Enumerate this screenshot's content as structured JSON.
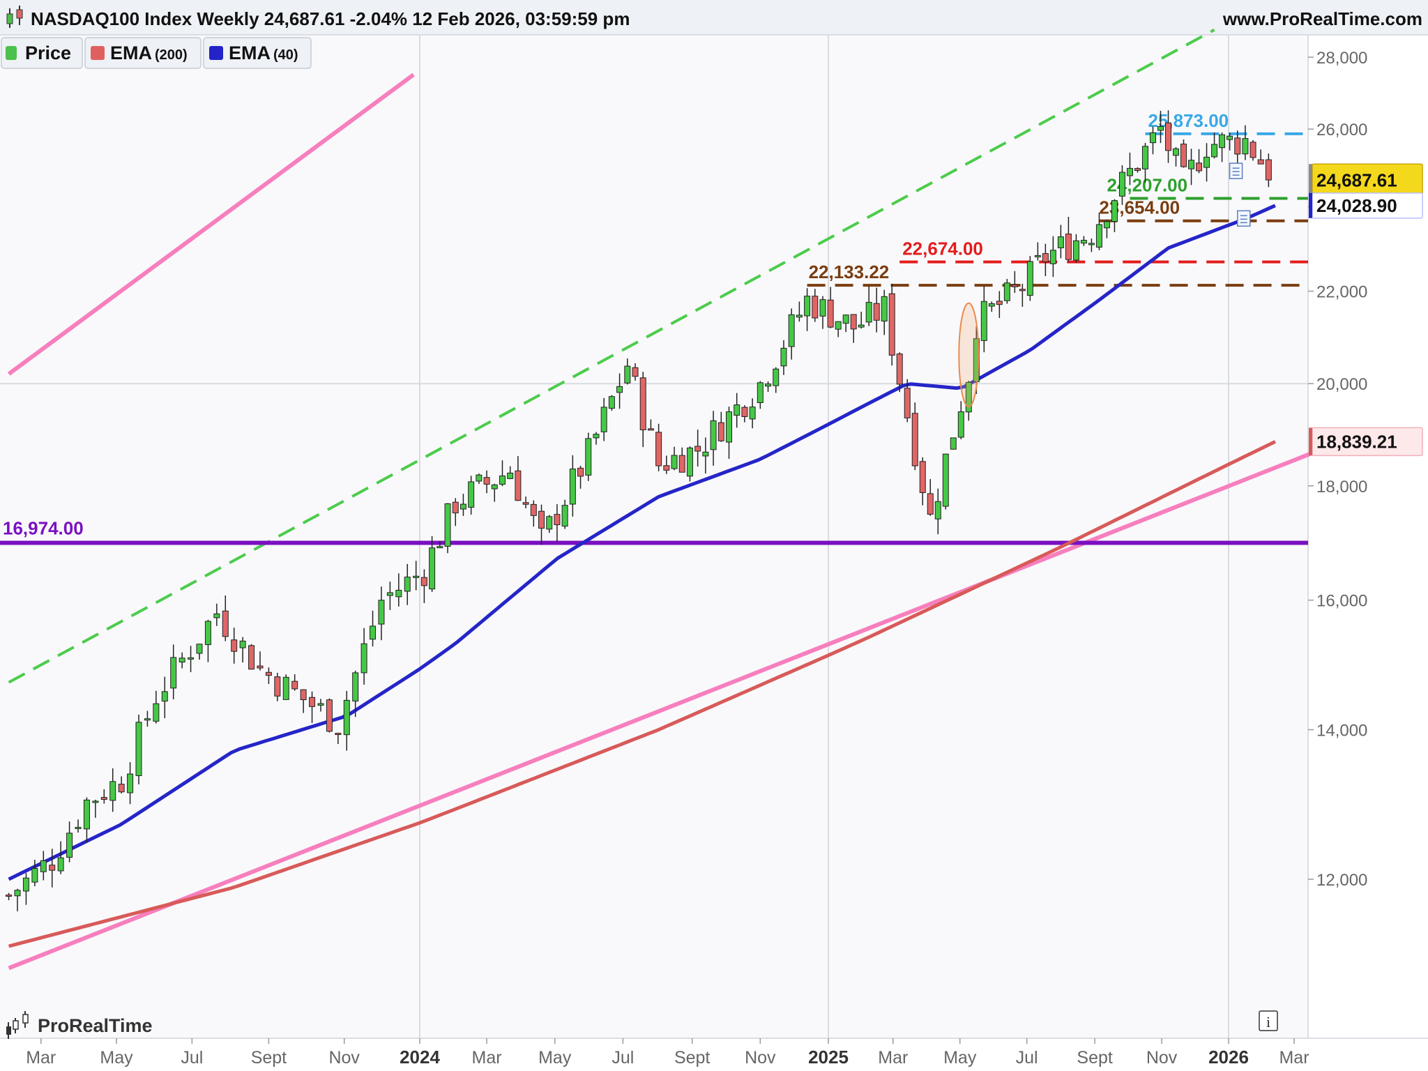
{
  "header": {
    "title": "NASDAQ100 Index Weekly 24,687.61 -2.04% 12 Feb 2026, 03:59:59 pm",
    "site": "www.ProRealTime.com"
  },
  "legend": [
    {
      "name": "Price",
      "param": "",
      "color": "#4cc04c"
    },
    {
      "name": "EMA",
      "param": "(200)",
      "color": "#e06060"
    },
    {
      "name": "EMA",
      "param": "(40)",
      "color": "#2323c8"
    }
  ],
  "brand": "ProRealTime",
  "info_button": "i",
  "colors": {
    "up_candle": "#46c846",
    "down_candle": "#e06666",
    "ema200": "#d85a5a",
    "ema40": "#2525c8",
    "channel_solid": "#f77fbe",
    "channel_dashed": "#4ccc4c",
    "support_purple": "#7a10c0",
    "level_red": "#e41c1c",
    "level_brown": "#7a3d10",
    "level_blue": "#3aa8e6",
    "level_green": "#2da02d",
    "price_tag": "#f4d81c"
  },
  "chart_data": {
    "type": "candlestick",
    "title": "NASDAQ100 Index Weekly",
    "scale": "log",
    "ylim": [
      10800,
      29000
    ],
    "yticks": [
      "12,000",
      "14,000",
      "16,000",
      "18,000",
      "20,000",
      "22,000",
      "24,000",
      "26,000",
      "28,000"
    ],
    "xticks": [
      "Mar",
      "May",
      "Jul",
      "Sept",
      "Nov",
      "2024",
      "Mar",
      "May",
      "Jul",
      "Sept",
      "Nov",
      "2025",
      "Mar",
      "May",
      "Jul",
      "Sept",
      "Nov",
      "2026",
      "Mar"
    ],
    "xtick_years": [
      "2024",
      "2025",
      "2026"
    ],
    "grid": "vertical lines at year starts, horizontal line at 20,000",
    "last_price": "24,687.61",
    "change_percent": "-2.04%",
    "date": "12 Feb 2026, 03:59:59 pm",
    "price_path": [
      [
        "2023-02-03",
        11800
      ],
      [
        "2023-03-10",
        12250
      ],
      [
        "2023-04-07",
        13000
      ],
      [
        "2023-05-05",
        13300
      ],
      [
        "2023-06-02",
        14500
      ],
      [
        "2023-07-21",
        15800
      ],
      [
        "2023-08-25",
        14900
      ],
      [
        "2023-10-27",
        14100
      ],
      [
        "2023-12-01",
        16000
      ],
      [
        "2024-01-05",
        16500
      ],
      [
        "2024-02-02",
        17700
      ],
      [
        "2024-03-22",
        18300
      ],
      [
        "2024-04-19",
        17000
      ],
      [
        "2024-05-31",
        18600
      ],
      [
        "2024-07-05",
        20400
      ],
      [
        "2024-08-02",
        18400
      ],
      [
        "2024-09-06",
        18700
      ],
      [
        "2024-11-01",
        20000
      ],
      [
        "2024-12-13",
        21800
      ],
      [
        "2025-01-24",
        21200
      ],
      [
        "2025-02-21",
        21600
      ],
      [
        "2025-04-04",
        17400
      ],
      [
        "2025-04-18",
        18500
      ],
      [
        "2025-05-09",
        20200
      ],
      [
        "2025-05-16",
        21300
      ],
      [
        "2025-06-27",
        22100
      ],
      [
        "2025-07-18",
        22800
      ],
      [
        "2025-08-29",
        23400
      ],
      [
        "2025-09-19",
        24300
      ],
      [
        "2025-10-31",
        26000
      ],
      [
        "2025-11-21",
        24600
      ],
      [
        "2025-12-12",
        25600
      ],
      [
        "2026-01-16",
        25700
      ],
      [
        "2026-02-12",
        24688
      ]
    ],
    "ema40": [
      [
        "2023-02-03",
        12000
      ],
      [
        "2023-05-05",
        12700
      ],
      [
        "2023-08-04",
        13700
      ],
      [
        "2023-11-03",
        14200
      ],
      [
        "2024-02-02",
        15300
      ],
      [
        "2024-05-03",
        16700
      ],
      [
        "2024-08-02",
        17800
      ],
      [
        "2024-11-01",
        18500
      ],
      [
        "2025-02-07",
        19600
      ],
      [
        "2025-03-14",
        20000
      ],
      [
        "2025-05-02",
        19900
      ],
      [
        "2025-07-04",
        20700
      ],
      [
        "2025-09-05",
        21800
      ],
      [
        "2025-11-07",
        23000
      ],
      [
        "2026-01-16",
        23700
      ],
      [
        "2026-02-12",
        24029
      ]
    ],
    "ema200": [
      [
        "2023-02-03",
        11200
      ],
      [
        "2023-08-04",
        11900
      ],
      [
        "2024-02-02",
        12900
      ],
      [
        "2024-08-02",
        14000
      ],
      [
        "2025-02-07",
        15400
      ],
      [
        "2025-08-01",
        16900
      ],
      [
        "2026-02-12",
        18839
      ]
    ],
    "levels": [
      {
        "label": "16,974.00",
        "value": 16974
      },
      {
        "label": "22,133.22",
        "value": 22133
      },
      {
        "label": "22,674.00",
        "value": 22674
      },
      {
        "label": "25,873.00",
        "value": 25873
      },
      {
        "label": "24,207.00",
        "value": 24207
      },
      {
        "label": "23,654.00",
        "value": 23654
      }
    ],
    "price_tags": [
      {
        "label": "24,687.61",
        "value": 24687.61,
        "series": "Price"
      },
      {
        "label": "24,028.90",
        "value": 24028.9,
        "series": "EMA (40)"
      },
      {
        "label": "18,839.21",
        "value": 18839.21,
        "series": "EMA (200)"
      }
    ],
    "trendlines": [
      {
        "style": "solid",
        "from": [
          "2023-02-03",
          20200
        ],
        "to": [
          "2023-12-27",
          27500
        ]
      },
      {
        "style": "solid",
        "from": [
          "2023-02-03",
          10950
        ],
        "to": [
          "2026-03-15",
          18600
        ]
      },
      {
        "style": "dashed",
        "from": [
          "2023-02-03",
          14700
        ],
        "to": [
          "2025-12-19",
          28800
        ]
      }
    ]
  }
}
